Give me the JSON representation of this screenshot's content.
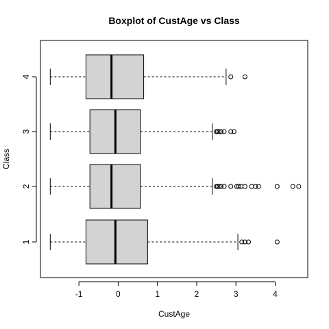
{
  "chart_data": {
    "type": "boxplot",
    "orientation": "horizontal",
    "title": "Boxplot of CustAge vs Class",
    "xlabel": "CustAge",
    "ylabel": "Class",
    "xlim": [
      -1.98,
      4.83
    ],
    "xticks": [
      -1,
      0,
      1,
      2,
      3,
      4
    ],
    "categories": [
      "1",
      "2",
      "3",
      "4"
    ],
    "box_fill": "#d3d3d3",
    "series": [
      {
        "category": "1",
        "min": -1.73,
        "q1": -0.82,
        "median": -0.07,
        "q3": 0.75,
        "max": 3.05,
        "outliers": [
          3.15,
          3.23,
          3.32,
          4.05
        ]
      },
      {
        "category": "2",
        "min": -1.73,
        "q1": -0.72,
        "median": -0.17,
        "q3": 0.57,
        "max": 2.4,
        "outliers": [
          2.5,
          2.53,
          2.57,
          2.62,
          2.7,
          2.87,
          3.02,
          3.07,
          3.13,
          3.23,
          3.4,
          3.5,
          3.58,
          4.05,
          4.45,
          4.6
        ]
      },
      {
        "category": "3",
        "min": -1.73,
        "q1": -0.72,
        "median": -0.07,
        "q3": 0.57,
        "max": 2.4,
        "outliers": [
          2.5,
          2.53,
          2.57,
          2.62,
          2.7,
          2.87,
          2.95
        ]
      },
      {
        "category": "4",
        "min": -1.73,
        "q1": -0.82,
        "median": -0.17,
        "q3": 0.65,
        "max": 2.75,
        "outliers": [
          2.87,
          3.23
        ]
      }
    ]
  }
}
